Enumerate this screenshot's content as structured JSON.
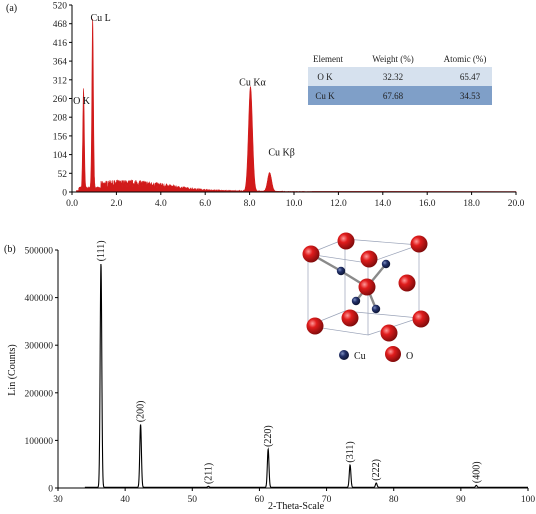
{
  "colors": {
    "eds_fill": "#d11a1a",
    "xrd_line": "#000000",
    "table_row1": "#d6e1ee",
    "table_row2": "#7f9fc8",
    "cu_atom": "#1e2b5a",
    "o_atom": "#d01818"
  },
  "chart_data": [
    {
      "type": "area",
      "panel_label": "(a)",
      "xlim": [
        0.0,
        20.0
      ],
      "ylim": [
        0,
        520
      ],
      "x_ticks": [
        "0.0",
        "2.0",
        "4.0",
        "6.0",
        "8.0",
        "10.0",
        "12.0",
        "14.0",
        "16.0",
        "18.0",
        "20.0"
      ],
      "y_ticks": [
        "0",
        "52",
        "104",
        "156",
        "208",
        "260",
        "312",
        "364",
        "416",
        "468",
        "520"
      ],
      "peaks": [
        {
          "label": "O K",
          "x": 0.52,
          "y": 275
        },
        {
          "label": "Cu L",
          "x": 0.93,
          "y": 470
        },
        {
          "label": "Cu Kα",
          "x": 8.04,
          "y": 290
        },
        {
          "label": "Cu Kβ",
          "x": 8.9,
          "y": 52
        }
      ],
      "table": {
        "headers": [
          "Element",
          "Weight (%)",
          "Atomic (%)"
        ],
        "rows": [
          [
            "O K",
            "32.32",
            "65.47"
          ],
          [
            "Cu K",
            "67.68",
            "34.53"
          ]
        ]
      }
    },
    {
      "type": "line",
      "panel_label": "(b)",
      "xlabel": "2-Theta-Scale",
      "ylabel": "Lin (Counts)",
      "xlim": [
        30,
        100
      ],
      "ylim": [
        0,
        500000
      ],
      "x_ticks": [
        "30",
        "40",
        "50",
        "60",
        "70",
        "80",
        "90",
        "100"
      ],
      "y_ticks": [
        "0",
        "100000",
        "200000",
        "300000",
        "400000",
        "500000"
      ],
      "peaks": [
        {
          "label": "(111)",
          "x": 36.4,
          "y": 470000
        },
        {
          "label": "(200)",
          "x": 42.3,
          "y": 132000
        },
        {
          "label": "(211)",
          "x": 52.4,
          "y": 2000
        },
        {
          "label": "(220)",
          "x": 61.3,
          "y": 80000
        },
        {
          "label": "(311)",
          "x": 73.5,
          "y": 47000
        },
        {
          "label": "(222)",
          "x": 77.4,
          "y": 9000
        },
        {
          "label": "(400)",
          "x": 92.3,
          "y": 4000
        }
      ],
      "legend": [
        "Cu",
        "O"
      ]
    }
  ]
}
